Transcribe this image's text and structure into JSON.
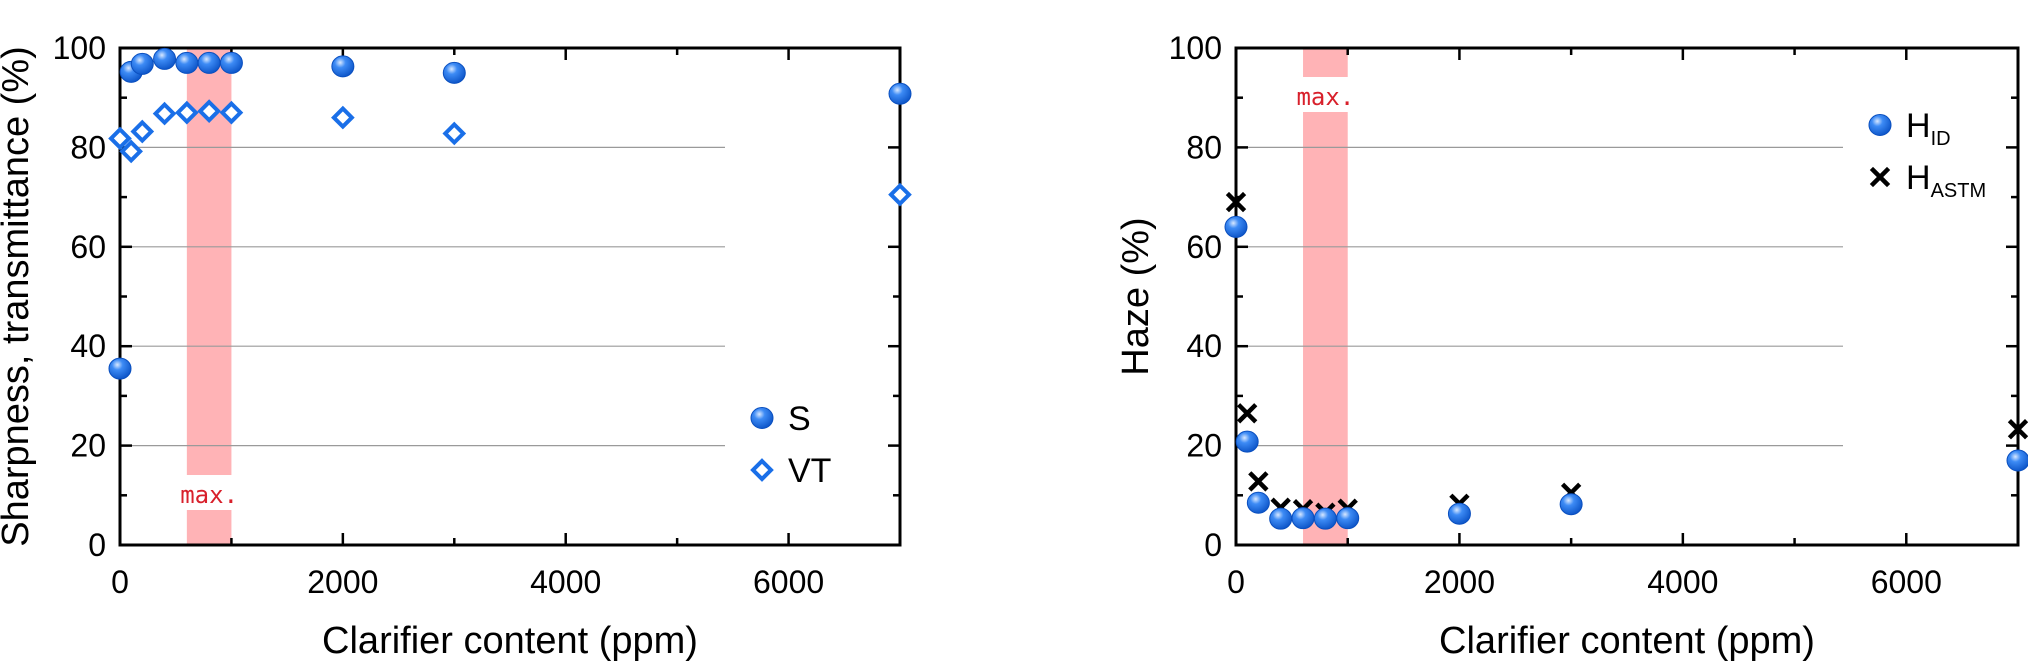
{
  "chart_data": [
    {
      "type": "scatter",
      "xlabel": "Clarifier content (ppm)",
      "ylabel": "Sharpness, transmittance (%)",
      "xlim": [
        0,
        7000
      ],
      "ylim": [
        0,
        100
      ],
      "xticks": [
        0,
        2000,
        4000,
        6000
      ],
      "yticks": [
        0,
        20,
        40,
        60,
        80,
        100
      ],
      "grid": "horizontal",
      "legend_position": "bottom-right",
      "band": {
        "x0": 600,
        "x1": 1000,
        "label": "max.",
        "label_position": "bottom"
      },
      "series": [
        {
          "name": "S",
          "marker": "circle",
          "color": "#1a6fe8",
          "x": [
            0,
            100,
            200,
            400,
            600,
            800,
            1000,
            2000,
            3000,
            7000
          ],
          "y": [
            35.5,
            95.2,
            96.8,
            97.8,
            97.0,
            97.0,
            97.0,
            96.3,
            95.0,
            90.8
          ]
        },
        {
          "name": "VT",
          "marker": "diamond",
          "color": "#1a6fe8",
          "x": [
            0,
            100,
            200,
            400,
            600,
            800,
            1000,
            2000,
            3000,
            7000
          ],
          "y": [
            81.8,
            79.2,
            83.2,
            86.8,
            87.0,
            87.3,
            87.0,
            86.0,
            82.8,
            70.5
          ]
        }
      ]
    },
    {
      "type": "scatter",
      "xlabel": "Clarifier content (ppm)",
      "ylabel": "Haze (%)",
      "xlim": [
        0,
        7000
      ],
      "ylim": [
        0,
        100
      ],
      "xticks": [
        0,
        2000,
        4000,
        6000
      ],
      "yticks": [
        0,
        20,
        40,
        60,
        80,
        100
      ],
      "grid": "horizontal",
      "legend_position": "top-right",
      "band": {
        "x0": 600,
        "x1": 1000,
        "label": "max.",
        "label_position": "top"
      },
      "series": [
        {
          "name": "H",
          "subscript": "ID",
          "marker": "circle",
          "color": "#1a6fe8",
          "x": [
            0,
            100,
            200,
            400,
            600,
            800,
            1000,
            2000,
            3000,
            7000
          ],
          "y": [
            64,
            20.8,
            8.5,
            5.3,
            5.4,
            5.3,
            5.4,
            6.3,
            8.2,
            17
          ]
        },
        {
          "name": "H",
          "subscript": "ASTM",
          "marker": "x",
          "color": "#000000",
          "x": [
            0,
            100,
            200,
            400,
            600,
            800,
            1000,
            2000,
            3000,
            7000
          ],
          "y": [
            69,
            26.5,
            12.8,
            7.5,
            7.2,
            6.5,
            7.3,
            8.3,
            10.5,
            23.3
          ]
        }
      ]
    }
  ]
}
